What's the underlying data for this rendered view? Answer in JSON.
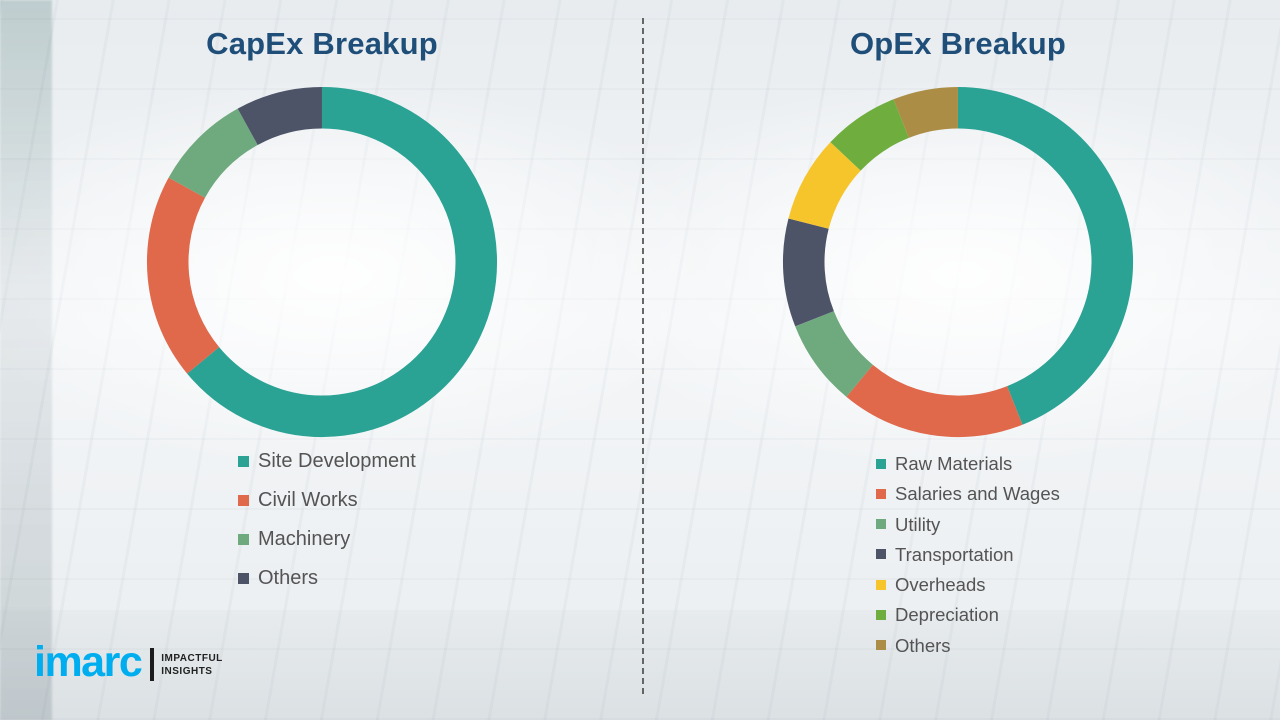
{
  "chart_data": [
    {
      "type": "pie",
      "style": "donut",
      "title": "CapEx Breakup",
      "labels": [
        "Site Development",
        "Civil Works",
        "Machinery",
        "Others"
      ],
      "values": [
        64,
        19,
        9,
        8
      ],
      "colors": [
        "#2AA294",
        "#E0684B",
        "#6FA97E",
        "#4D5468"
      ],
      "start_angle_deg": 0,
      "direction": "clockwise",
      "legend_position": "bottom-left"
    },
    {
      "type": "pie",
      "style": "donut",
      "title": "OpEx Breakup",
      "labels": [
        "Raw Materials",
        "Salaries and Wages",
        "Utility",
        "Transportation",
        "Overheads",
        "Depreciation",
        "Others"
      ],
      "values": [
        44,
        17,
        8,
        10,
        8,
        7,
        6
      ],
      "colors": [
        "#2AA294",
        "#E0684B",
        "#6FA97E",
        "#4D5468",
        "#F6C52C",
        "#6FAE3E",
        "#AB8D45"
      ],
      "start_angle_deg": 0,
      "direction": "clockwise",
      "legend_position": "bottom-left"
    }
  ],
  "logo": {
    "name": "imarc",
    "tagline_line1": "IMPACTFUL",
    "tagline_line2": "INSIGHTS"
  }
}
